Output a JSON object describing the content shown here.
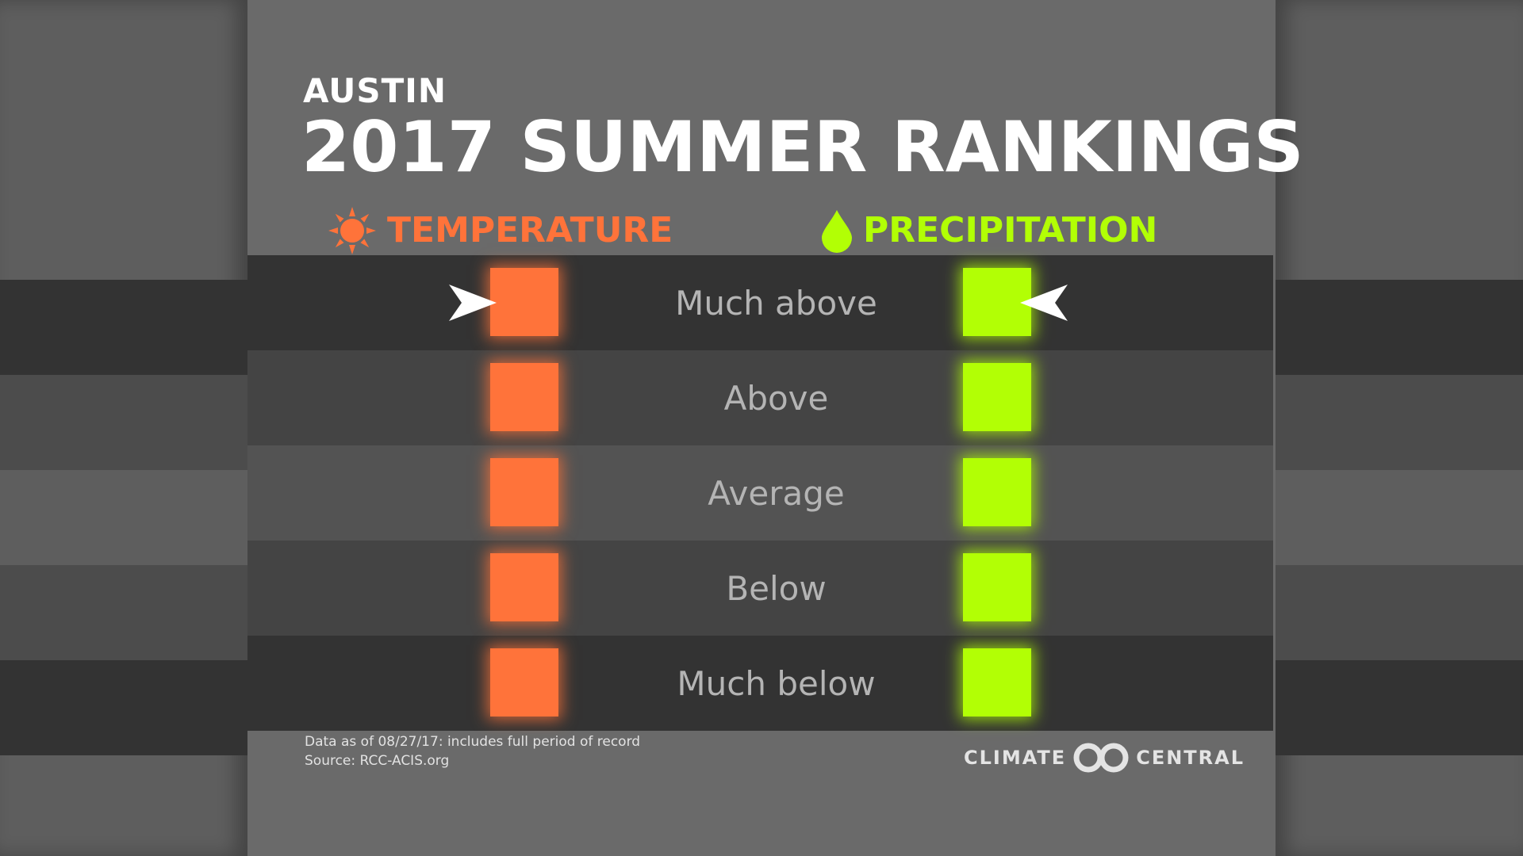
{
  "header": {
    "city": "AUSTIN",
    "title": "2017 SUMMER RANKINGS"
  },
  "columns": {
    "temperature": {
      "label": "TEMPERATURE",
      "icon": "sun-icon",
      "color": "#ff733a",
      "selected_rank": "Much above"
    },
    "precipitation": {
      "label": "PRECIPITATION",
      "icon": "water-drop-icon",
      "color": "#b2ff05",
      "selected_rank": "Much above"
    }
  },
  "rows": [
    {
      "label": "Much above",
      "band_color": "#333333",
      "side_color": "#333333"
    },
    {
      "label": "Above",
      "band_color": "#444444",
      "side_color": "#4c4c4c"
    },
    {
      "label": "Average",
      "band_color": "#535353",
      "side_color": "#5e5e5e"
    },
    {
      "label": "Below",
      "band_color": "#444444",
      "side_color": "#4c4c4c"
    },
    {
      "label": "Much below",
      "band_color": "#333333",
      "side_color": "#333333"
    }
  ],
  "footnote": {
    "line1": "Data as of 08/27/17: includes full period of record",
    "line2": "Source: RCC-ACIS.org"
  },
  "logo": {
    "left_text": "CLIMATE",
    "right_text": "CENTRAL",
    "icon": "climate-central-logo-icon"
  }
}
